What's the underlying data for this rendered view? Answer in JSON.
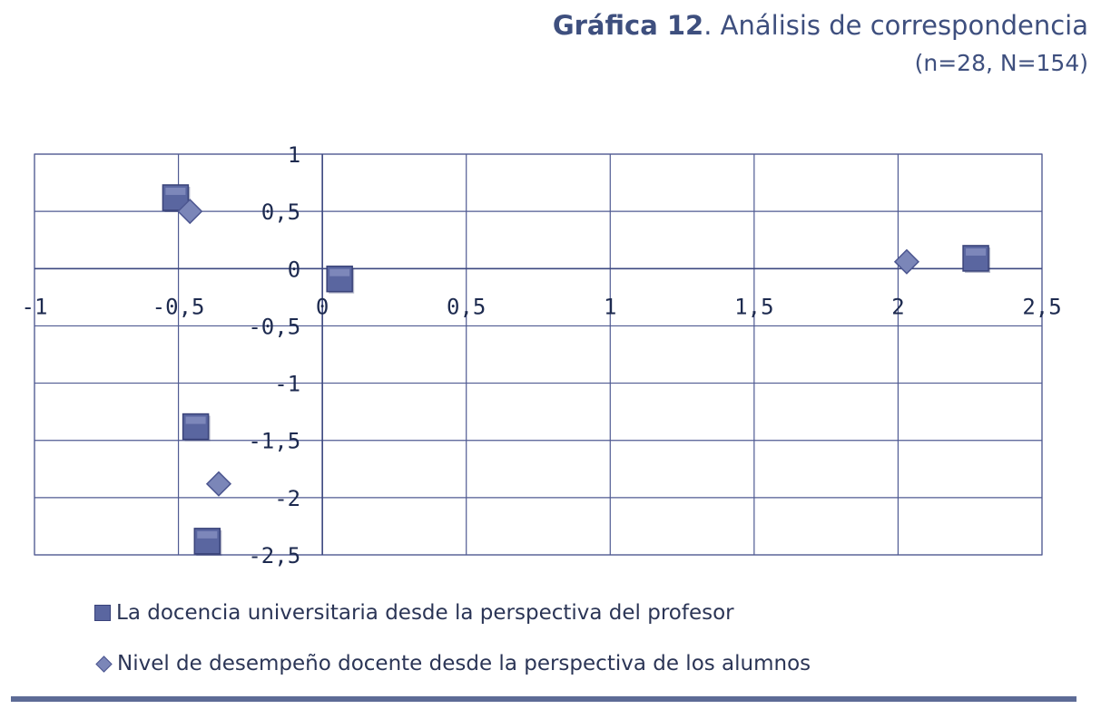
{
  "title": {
    "bold": "Gráfica 12",
    "rest": ". Análisis de correspondencia",
    "subtitle": "(n=28, N=154)"
  },
  "chart_data": {
    "type": "scatter",
    "title": "",
    "xlabel": "",
    "ylabel": "",
    "xlim": [
      -1,
      2.5
    ],
    "ylim": [
      -2.5,
      1
    ],
    "x_ticks": [
      -1,
      -0.5,
      0,
      0.5,
      1,
      1.5,
      2,
      2.5
    ],
    "y_ticks": [
      1,
      0.5,
      0,
      -0.5,
      -1,
      -1.5,
      -2,
      -2.5
    ],
    "x_tick_labels": [
      "-1",
      "-0,5",
      "0",
      "0,5",
      "1",
      "1,5",
      "2",
      "2,5"
    ],
    "y_tick_labels": [
      "1",
      "0,5",
      "0",
      "-0,5",
      "-1",
      "-1,5",
      "-2",
      "-2,5"
    ],
    "grid": true,
    "legend_position": "bottom",
    "series": [
      {
        "name": "La docencia universitaria desde la perspectiva del profesor",
        "marker": "square",
        "color": "#5a66a0",
        "points": [
          {
            "x": -0.51,
            "y": 0.62
          },
          {
            "x": 0.06,
            "y": -0.09
          },
          {
            "x": 2.27,
            "y": 0.09
          },
          {
            "x": -0.44,
            "y": -1.38
          },
          {
            "x": -0.4,
            "y": -2.38
          }
        ]
      },
      {
        "name": "Nivel de desempeño docente desde la perspectiva de los alumnos",
        "marker": "diamond",
        "color": "#7b86b8",
        "points": [
          {
            "x": -0.46,
            "y": 0.5
          },
          {
            "x": 2.03,
            "y": 0.06
          },
          {
            "x": -0.36,
            "y": -1.88
          }
        ]
      }
    ]
  }
}
